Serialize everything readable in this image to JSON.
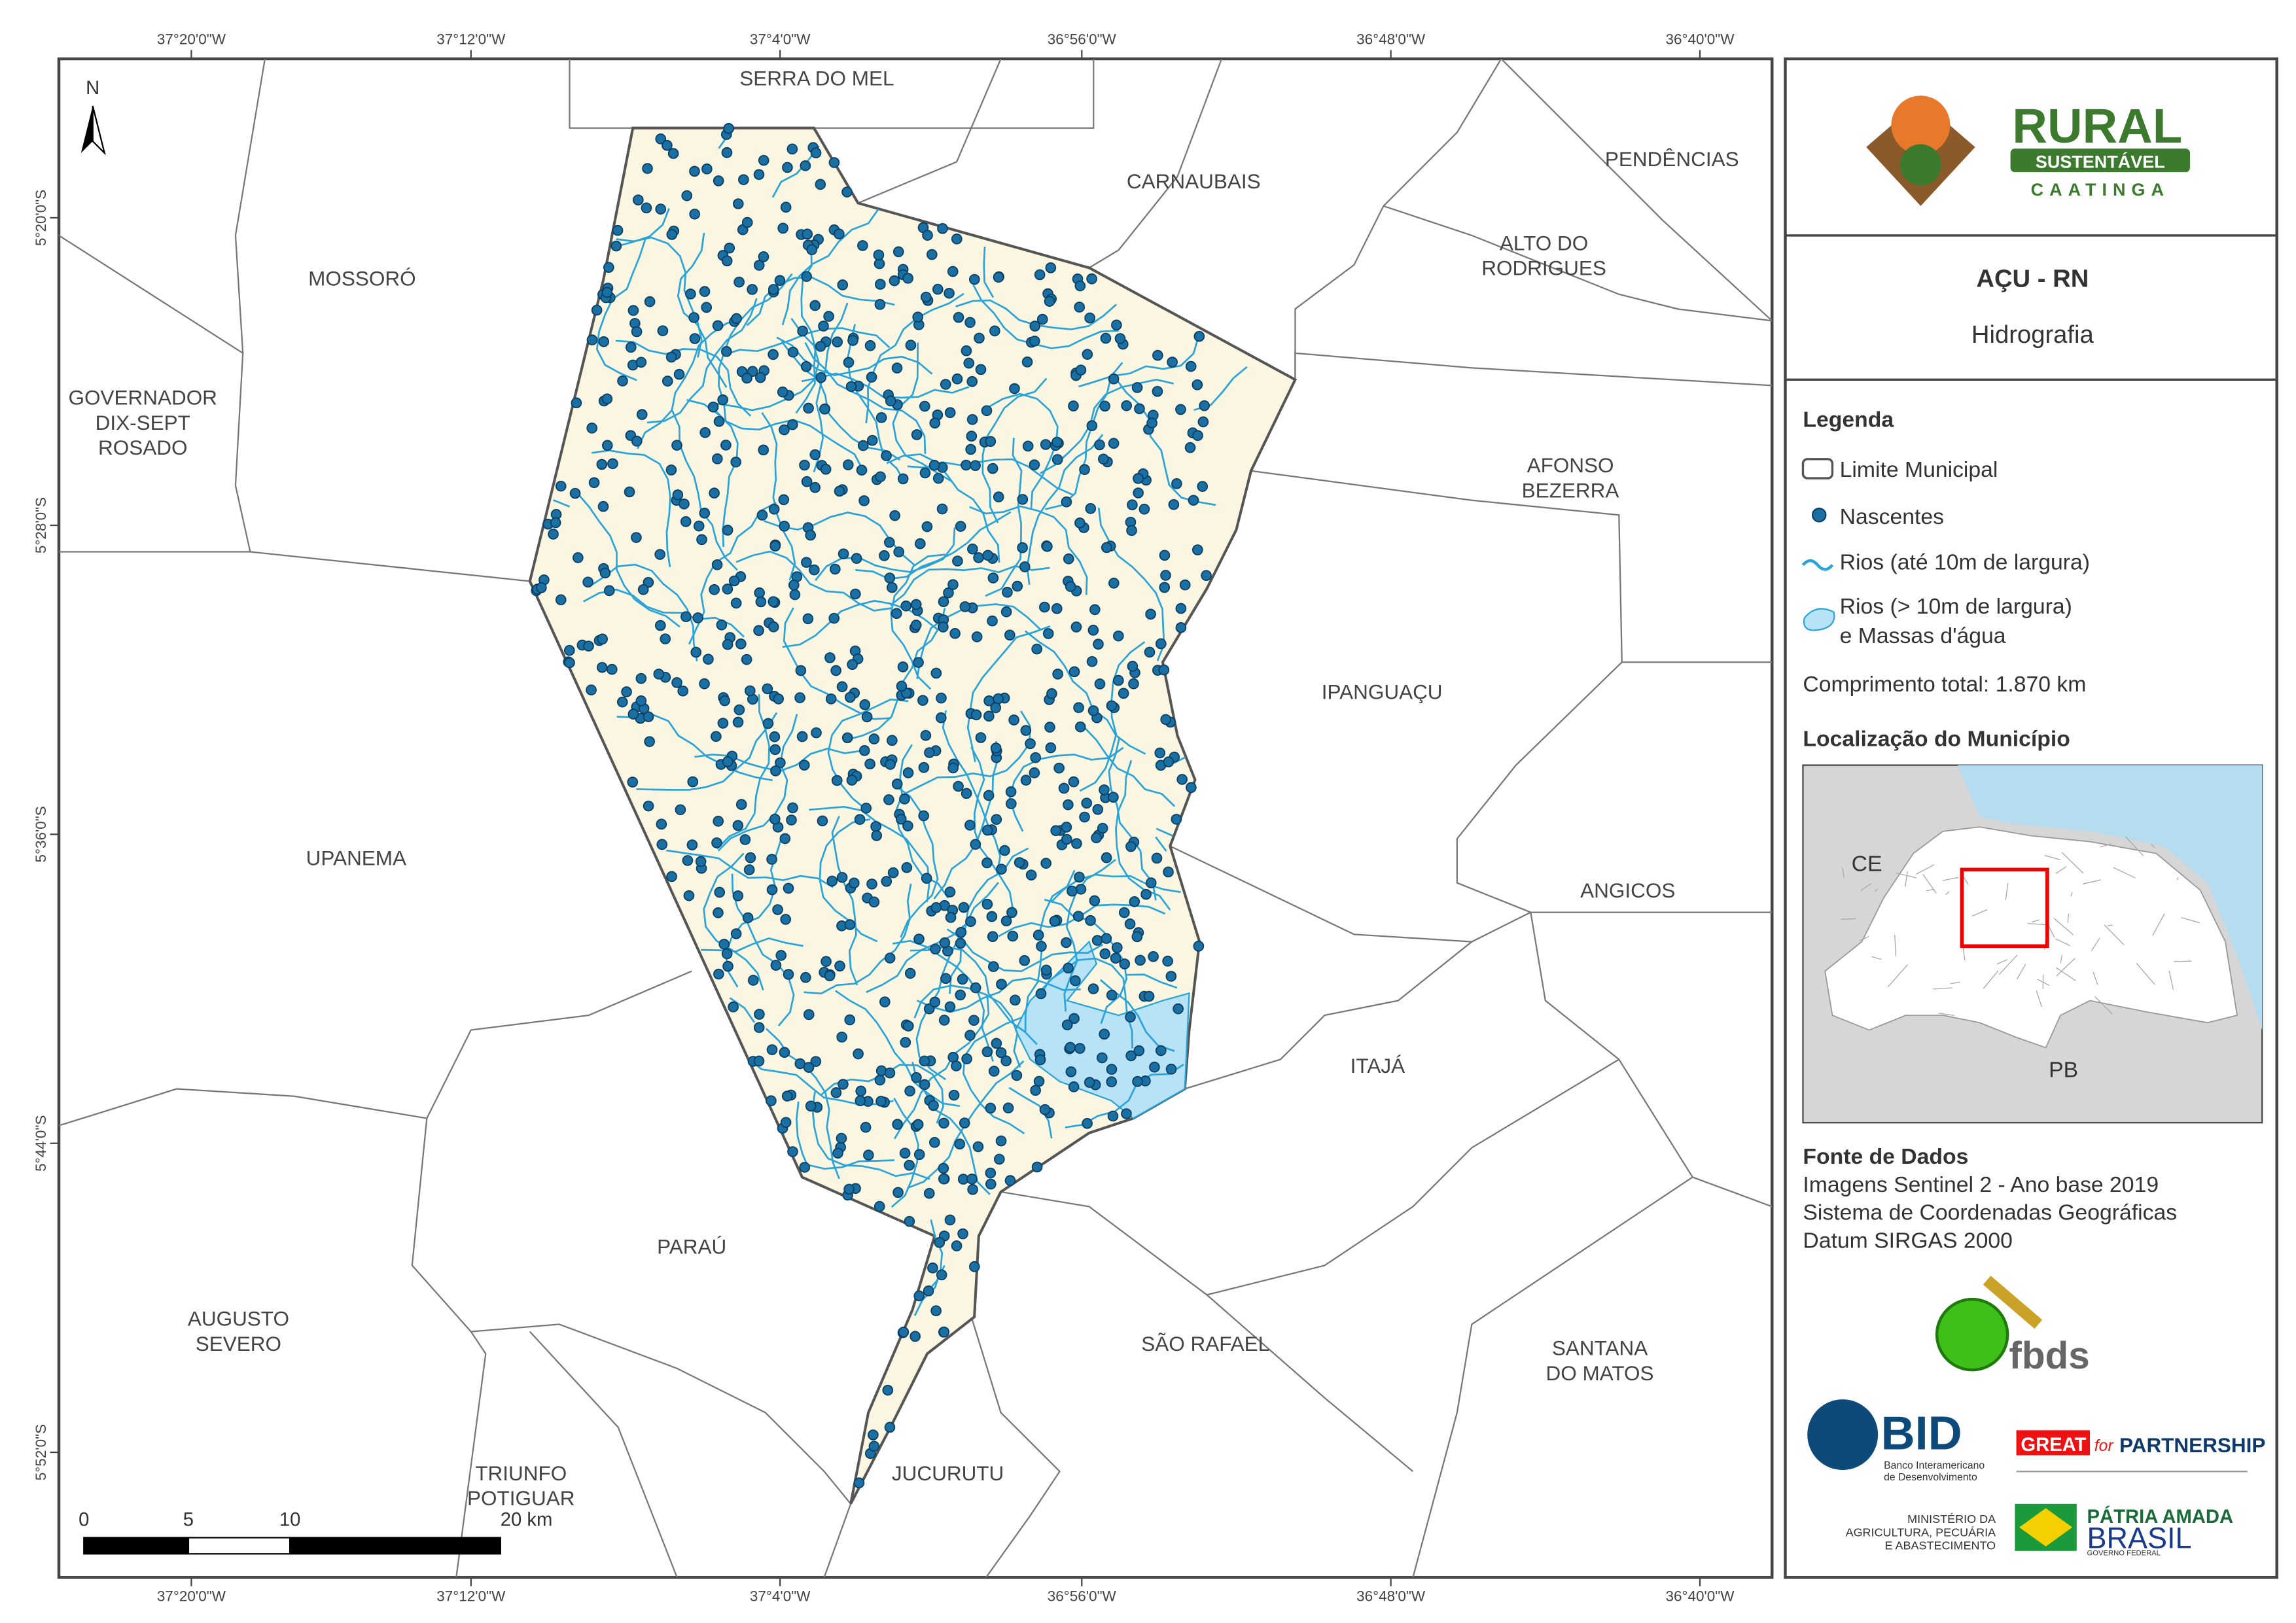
{
  "map": {
    "title": "AÇU - RN",
    "subtitle": "Hidrografia",
    "north": "N",
    "graticule": {
      "lon": [
        "37°20'0\"W",
        "37°12'0\"W",
        "37°4'0\"W",
        "36°56'0\"W",
        "36°48'0\"W",
        "36°40'0\"W"
      ],
      "lat": [
        "5°20'0\"S",
        "5°28'0\"S",
        "5°36'0\"S",
        "5°44'0\"S",
        "5°52'0\"S"
      ]
    },
    "scale_bar": {
      "labels": [
        "0",
        "5",
        "10",
        "20 km"
      ]
    },
    "municipalities": [
      {
        "lines": [
          "SERRA DO MEL"
        ]
      },
      {
        "lines": [
          "CARNAUBAIS"
        ]
      },
      {
        "lines": [
          "PENDÊNCIAS"
        ]
      },
      {
        "lines": [
          "ALTO DO",
          "RODRIGUES"
        ]
      },
      {
        "lines": [
          "MOSSORÓ"
        ]
      },
      {
        "lines": [
          "GOVERNADOR",
          "DIX-SEPT",
          "ROSADO"
        ]
      },
      {
        "lines": [
          "AFONSO",
          "BEZERRA"
        ]
      },
      {
        "lines": [
          "IPANGUAÇU"
        ]
      },
      {
        "lines": [
          "UPANEMA"
        ]
      },
      {
        "lines": [
          "ANGICOS"
        ]
      },
      {
        "lines": [
          "ITAJÁ"
        ]
      },
      {
        "lines": [
          "PARAÚ"
        ]
      },
      {
        "lines": [
          "AUGUSTO",
          "SEVERO"
        ]
      },
      {
        "lines": [
          "SÃO RAFAEL"
        ]
      },
      {
        "lines": [
          "SANTANA",
          "DO MATOS"
        ]
      },
      {
        "lines": [
          "TRIUNFO",
          "POTIGUAR"
        ]
      },
      {
        "lines": [
          "JUCURUTU"
        ]
      }
    ],
    "brand": {
      "name": "RURAL",
      "tag": "SUSTENTÁVEL",
      "region": "CAATINGA"
    },
    "legend": {
      "title": "Legenda",
      "items": [
        [
          "Limite Municipal"
        ],
        [
          "Nascentes"
        ],
        [
          "Rios (até 10m de largura)"
        ],
        [
          "Rios (> 10m de largura)",
          "e Massas d'água"
        ]
      ],
      "total": "Comprimento total:  1.870 km"
    },
    "location": {
      "title": "Localização do Município",
      "labels": [
        "CE",
        "PB"
      ]
    },
    "sources": {
      "title": "Fonte de Dados",
      "lines": [
        "Imagens Sentinel 2 - Ano base 2019",
        "Sistema de Coordenadas Geográficas",
        "Datum SIRGAS 2000"
      ]
    },
    "logos": {
      "fbds": "fbds",
      "bid": "BID",
      "bid_sub": [
        "Banco Interamericano",
        "de Desenvolvimento"
      ],
      "great": "GREAT",
      "great_for": "for",
      "partnership": "PARTNERSHIP",
      "ministry": [
        "MINISTÉRIO DA",
        "AGRICULTURA, PECUÁRIA",
        "E ABASTECIMENTO"
      ],
      "patria": "PÁTRIA AMADA",
      "brasil": "BRASIL",
      "gov": "GOVERNO FEDERAL"
    }
  }
}
